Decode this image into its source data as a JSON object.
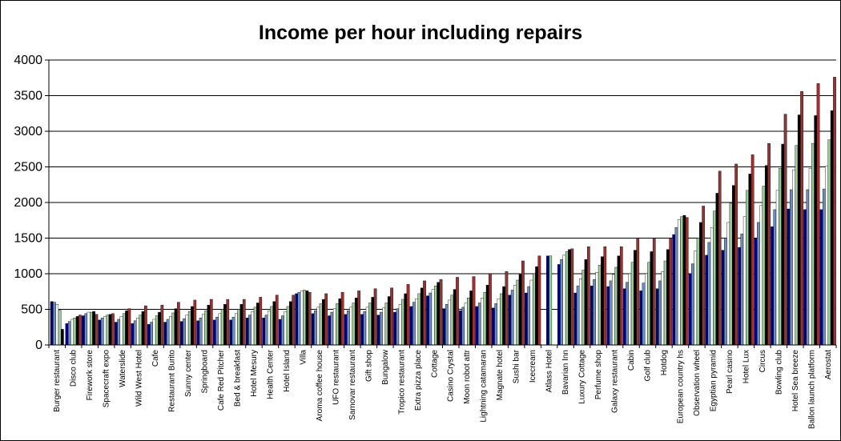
{
  "chart_data": {
    "type": "bar",
    "title": "Income per hour including repairs",
    "xlabel": "",
    "ylabel": "",
    "ylim": [
      0,
      4000
    ],
    "yticks": [
      0,
      500,
      1000,
      1500,
      2000,
      2500,
      3000,
      3500,
      4000
    ],
    "grid": true,
    "legend": "none",
    "series_colors": [
      "#000080",
      "#6c8ebf",
      "#ffffff",
      "#99cc99",
      "#000000",
      "#993333"
    ],
    "labeled_categories": [
      "Burger restaurant",
      "Disco club",
      "Firework store",
      "Spacecraft expo",
      "Waterslide",
      "Wild West Hotel",
      "Cafe",
      "Restaurant Burito",
      "Sunny center",
      "Springboard",
      "Cafe Red Pitcher",
      "Bed & breakfast",
      "Hotel Mesury",
      "Health Center",
      "Hotel Island",
      "Villa",
      "Aroma coffee house",
      "UFO restaurant",
      "Samovar restaurant",
      "Gift shop",
      "Bungalow",
      "Tropico restaurant",
      "Extra pizza place",
      "Cottage",
      "Casino Crystal",
      "Moon robot attr",
      "Lightning catamaran",
      "Magnate hotel",
      "Sushi bar",
      "Icecream",
      "Atlass Hotel",
      "Bavarian Inn",
      "Luxury Cottage",
      "Perfume shop",
      "Galaxy restaurant",
      "Cabin",
      "Golf club",
      "Hotdog",
      "European country hs",
      "Observation wheel",
      "Egyptian pyramid",
      "Pearl casino",
      "Hotel Lux",
      "Circus",
      "Bowling club",
      "Hotel Sea breeze",
      "Ballon launch platform",
      "Aerostat"
    ],
    "groups": [
      {
        "values": [
          610,
          600,
          570,
          490,
          220
        ]
      },
      {
        "values": [
          300,
          330,
          360,
          380,
          400,
          420
        ]
      },
      {
        "values": [
          410,
          440,
          460,
          460,
          470,
          430
        ]
      },
      {
        "values": [
          350,
          380,
          400,
          420,
          430,
          440
        ]
      },
      {
        "values": [
          320,
          360,
          400,
          440,
          480,
          510
        ]
      },
      {
        "values": [
          300,
          340,
          380,
          420,
          470,
          550
        ]
      },
      {
        "values": [
          290,
          320,
          360,
          410,
          460,
          560
        ]
      },
      {
        "values": [
          320,
          360,
          400,
          450,
          510,
          600
        ]
      },
      {
        "values": [
          330,
          370,
          420,
          470,
          540,
          630
        ]
      },
      {
        "values": [
          340,
          380,
          430,
          480,
          560,
          640
        ]
      },
      {
        "values": [
          350,
          390,
          440,
          500,
          570,
          640
        ]
      },
      {
        "values": [
          350,
          390,
          440,
          500,
          570,
          640
        ]
      },
      {
        "values": [
          380,
          420,
          470,
          530,
          590,
          670
        ]
      },
      {
        "values": [
          380,
          420,
          480,
          540,
          610,
          700
        ]
      },
      {
        "values": [
          360,
          410,
          470,
          540,
          610,
          700
        ]
      },
      {
        "values": [
          720,
          740,
          760,
          770,
          760,
          740
        ]
      },
      {
        "values": [
          440,
          480,
          530,
          580,
          640,
          720
        ]
      },
      {
        "values": [
          410,
          460,
          510,
          580,
          650,
          740
        ]
      },
      {
        "values": [
          430,
          480,
          530,
          590,
          660,
          760
        ]
      },
      {
        "values": [
          430,
          470,
          530,
          590,
          670,
          790
        ]
      },
      {
        "values": [
          420,
          460,
          520,
          590,
          680,
          800
        ]
      },
      {
        "values": [
          460,
          510,
          570,
          640,
          720,
          850
        ]
      },
      {
        "values": [
          540,
          600,
          650,
          720,
          800,
          900
        ]
      },
      {
        "values": [
          690,
          730,
          780,
          830,
          880,
          920
        ]
      },
      {
        "values": [
          510,
          570,
          630,
          700,
          780,
          950
        ]
      },
      {
        "values": [
          480,
          530,
          590,
          660,
          760,
          960
        ]
      },
      {
        "values": [
          540,
          590,
          660,
          740,
          840,
          1000
        ]
      },
      {
        "values": [
          520,
          580,
          650,
          720,
          820,
          1030
        ]
      },
      {
        "values": [
          700,
          770,
          840,
          910,
          990,
          1180
        ]
      },
      {
        "values": [
          730,
          820,
          910,
          1000,
          1100,
          1250
        ]
      },
      {
        "values": [
          1250,
          1250
        ]
      },
      {
        "values": [
          1130,
          1200,
          1260,
          1310,
          1340,
          1350
        ]
      },
      {
        "values": [
          730,
          830,
          930,
          1050,
          1200,
          1380
        ]
      },
      {
        "values": [
          830,
          920,
          1020,
          1120,
          1240,
          1380
        ]
      },
      {
        "values": [
          820,
          900,
          990,
          1090,
          1250,
          1380
        ]
      },
      {
        "values": [
          790,
          880,
          1000,
          1160,
          1330,
          1500
        ]
      },
      {
        "values": [
          760,
          870,
          1000,
          1160,
          1310,
          1500
        ]
      },
      {
        "values": [
          790,
          900,
          1030,
          1180,
          1340,
          1500
        ]
      },
      {
        "values": [
          1550,
          1650,
          1760,
          1800,
          1820,
          1790
        ]
      },
      {
        "values": [
          1000,
          1140,
          1320,
          1500,
          1720,
          1950
        ]
      },
      {
        "values": [
          1260,
          1440,
          1650,
          1880,
          2130,
          2440
        ]
      },
      {
        "values": [
          1330,
          1500,
          1720,
          1990,
          2240,
          2540
        ]
      },
      {
        "values": [
          1370,
          1560,
          1800,
          2170,
          2400,
          2670
        ]
      },
      {
        "values": [
          1500,
          1720,
          1960,
          2230,
          2520,
          2830
        ]
      },
      {
        "values": [
          1660,
          1900,
          2170,
          2480,
          2820,
          3240
        ]
      },
      {
        "values": [
          1910,
          2180,
          2460,
          2800,
          3230,
          3560
        ]
      },
      {
        "values": [
          1900,
          2180,
          2480,
          2830,
          3220,
          3670
        ]
      },
      {
        "values": [
          1900,
          2190,
          2510,
          2880,
          3290,
          3760
        ]
      }
    ]
  }
}
